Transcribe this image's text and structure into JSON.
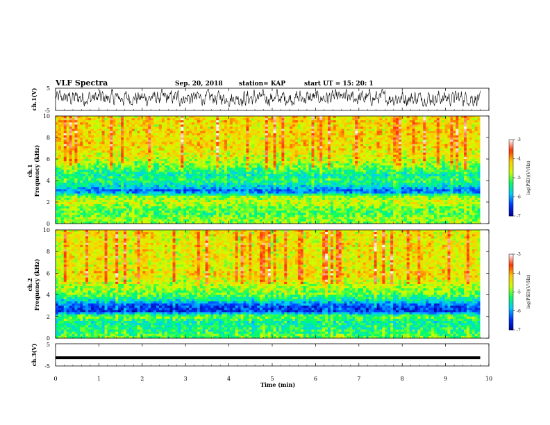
{
  "header": {
    "title": "VLF Spectra",
    "date": "Sep. 20, 2018",
    "station": "station= KAP",
    "start": "start  UT  =   15: 20: 1"
  },
  "colorbar": {
    "label": "log(PSD)(V²/Hz)",
    "ticks": [
      "-3",
      "-4",
      "-5",
      "-6",
      "-7"
    ],
    "range": [
      -7,
      -3
    ],
    "colors": [
      "#000099",
      "#0033ff",
      "#00ccff",
      "#00ff66",
      "#ccff00",
      "#ffcc00",
      "#ff3300",
      "#ffffff"
    ]
  },
  "chart_data": [
    {
      "type": "line",
      "name": "ch1-waveform",
      "ylabel": "ch.1(V)",
      "ylim": [
        -5,
        5
      ],
      "yticks": [
        "5",
        "-5"
      ],
      "xlim": [
        0,
        9.8
      ],
      "note_values": "dense noise-like waveform, amplitude mostly between -2 and 4 V"
    },
    {
      "type": "heatmap",
      "name": "ch1-spectrogram",
      "ylabel_top": "ch.1",
      "ylabel": "Frequency (kHz)",
      "ylim": [
        0,
        10
      ],
      "yticks": [
        "0",
        "2",
        "4",
        "6",
        "8",
        "10"
      ],
      "xlim": [
        0,
        9.8
      ],
      "zlim": [
        -7,
        -3
      ],
      "freq_profile_khz": [
        0,
        0.5,
        1,
        1.5,
        2,
        2.5,
        3,
        3.5,
        4,
        4.5,
        5,
        5.5,
        6,
        6.5,
        7,
        7.5,
        8,
        8.5,
        9,
        9.5,
        10
      ],
      "freq_profile_log_psd": [
        -5.0,
        -4.9,
        -5.2,
        -5.0,
        -4.7,
        -4.9,
        -6.3,
        -5.7,
        -5.3,
        -5.5,
        -5.2,
        -4.9,
        -4.6,
        -4.5,
        -4.4,
        -4.3,
        -4.4,
        -4.3,
        -4.4,
        -4.3,
        -4.4
      ]
    },
    {
      "type": "heatmap",
      "name": "ch2-spectrogram",
      "ylabel_top": "ch.2",
      "ylabel": "Frequency (kHz)",
      "ylim": [
        0,
        10
      ],
      "yticks": [
        "0",
        "2",
        "4",
        "6",
        "8",
        "10"
      ],
      "xlim": [
        0,
        9.8
      ],
      "zlim": [
        -7,
        -3
      ],
      "freq_profile_khz": [
        0,
        0.5,
        1,
        1.5,
        2,
        2.5,
        3,
        3.5,
        4,
        4.5,
        5,
        5.5,
        6,
        6.5,
        7,
        7.5,
        8,
        8.5,
        9,
        9.5,
        10
      ],
      "freq_profile_log_psd": [
        -5.0,
        -5.3,
        -5.4,
        -5.5,
        -5.0,
        -6.5,
        -6.4,
        -5.6,
        -5.1,
        -4.9,
        -4.7,
        -4.5,
        -4.3,
        -4.5,
        -4.5,
        -4.4,
        -4.5,
        -4.4,
        -4.5,
        -4.4,
        -4.5
      ]
    },
    {
      "type": "line",
      "name": "ch3-waveform",
      "ylabel": "ch.3(V)",
      "ylim": [
        -5,
        5
      ],
      "yticks": [
        "5",
        "-5"
      ],
      "xlim": [
        0,
        9.8
      ],
      "x": [
        0,
        9.8
      ],
      "y": [
        -1.3,
        -1.3
      ]
    }
  ],
  "x_axis": {
    "label": "Time  (min)",
    "ticks": [
      "0",
      "1",
      "2",
      "3",
      "4",
      "5",
      "6",
      "7",
      "8",
      "9",
      "10"
    ],
    "range": [
      0,
      10
    ]
  }
}
